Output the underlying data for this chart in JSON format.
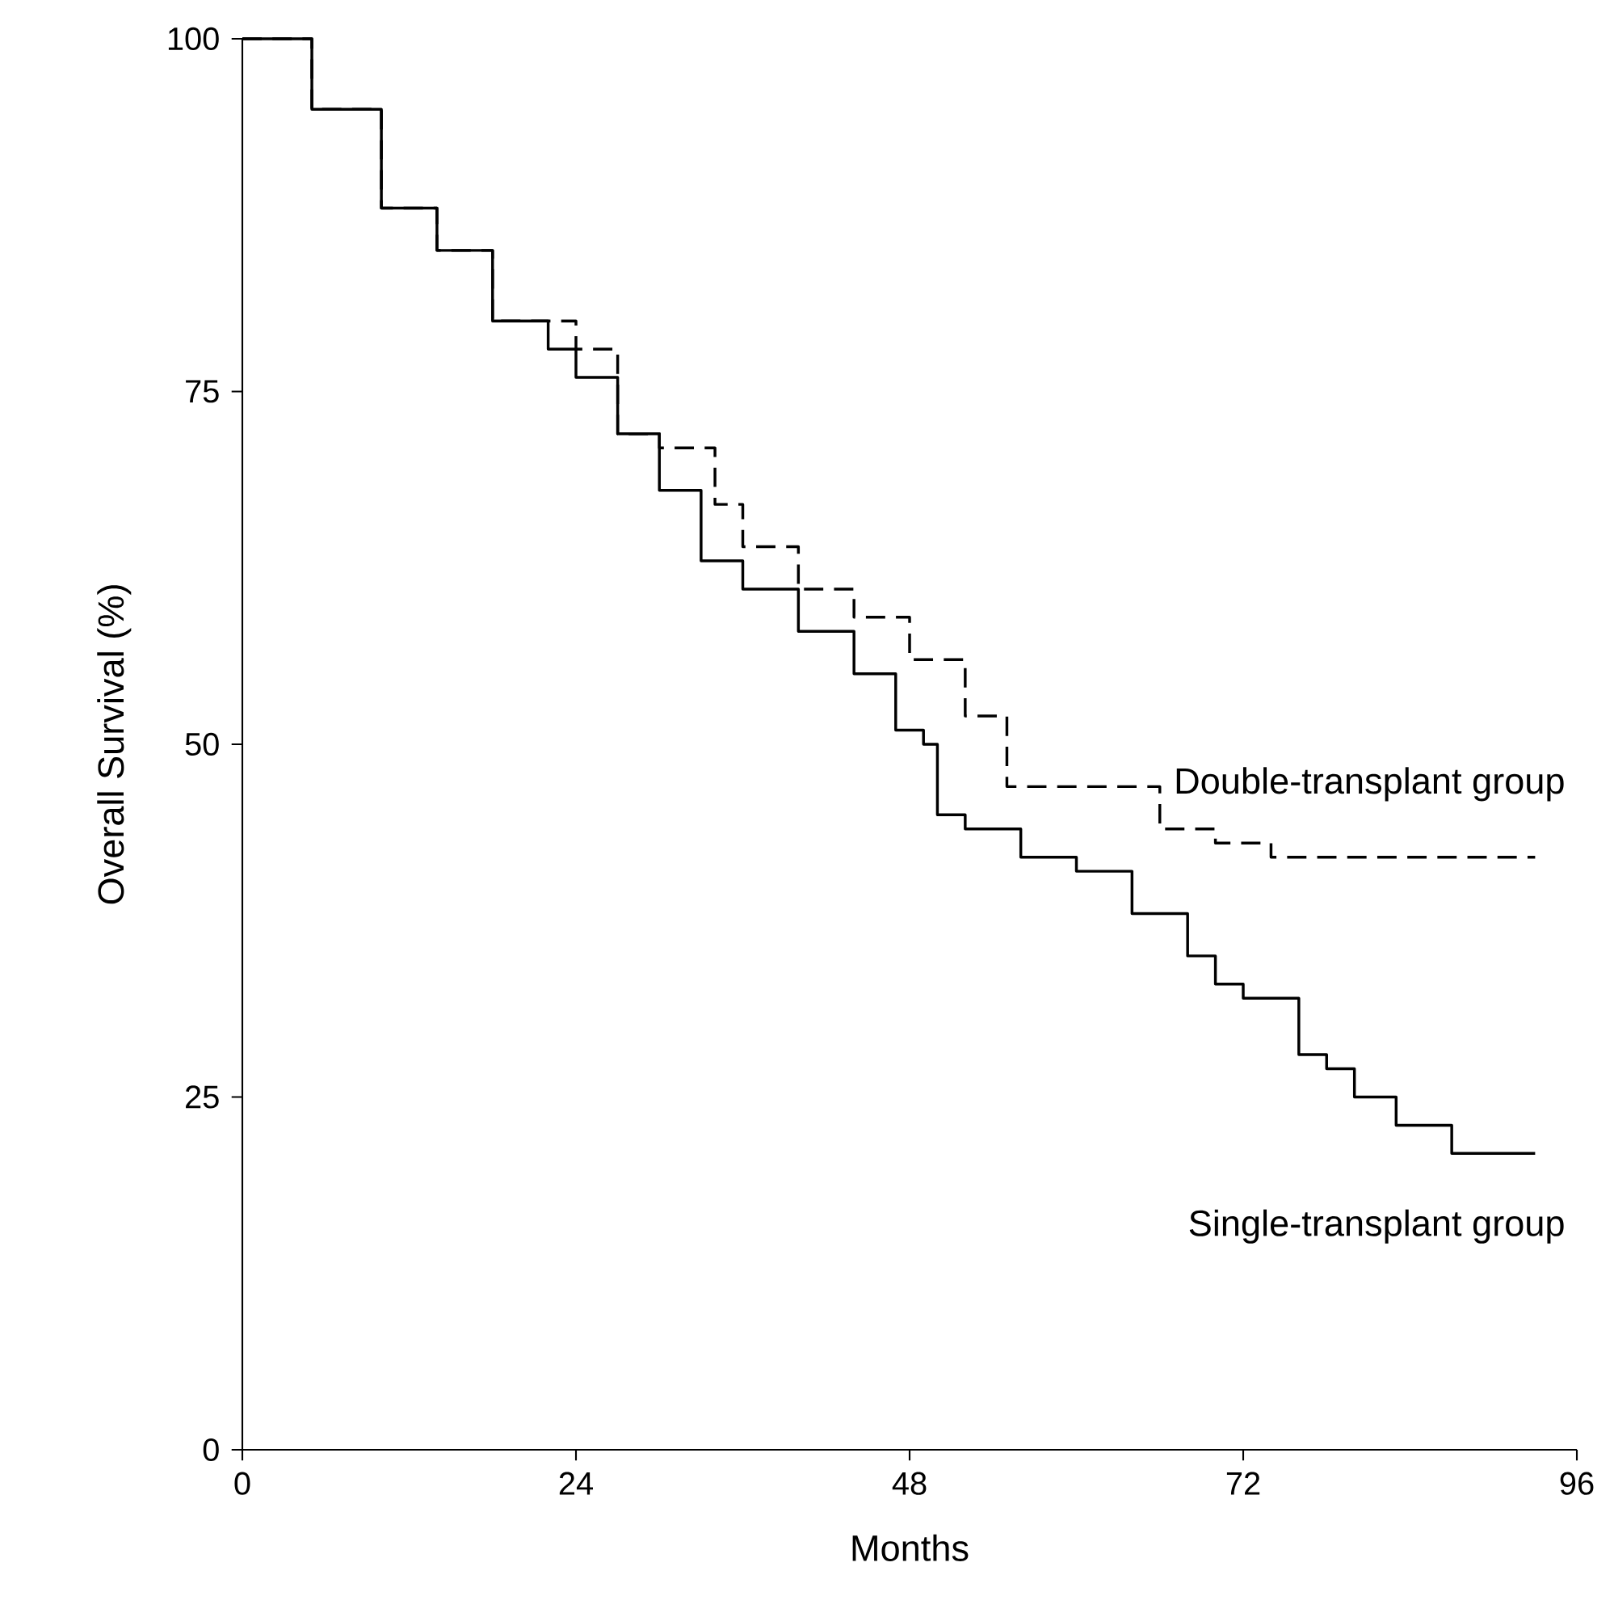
{
  "chart_data": {
    "type": "step",
    "xlabel": "Months",
    "ylabel": "Overall Survival (%)",
    "xlim": [
      0,
      96
    ],
    "ylim": [
      0,
      100
    ],
    "xticks": [
      0,
      24,
      48,
      72,
      96
    ],
    "yticks": [
      0,
      25,
      50,
      75,
      100
    ],
    "grid": false,
    "legend": false,
    "marker": "none",
    "series": [
      {
        "name": "Double-transplant group",
        "color": "#000000",
        "line_style": "dashed",
        "x": [
          0,
          5,
          10,
          14,
          18,
          24,
          27,
          30,
          34,
          36,
          40,
          44,
          48,
          52,
          55,
          60,
          63,
          66,
          70,
          74,
          93
        ],
        "values": [
          100,
          95,
          88,
          85,
          80,
          78,
          72,
          71,
          67,
          64,
          61,
          59,
          56,
          52,
          47,
          47,
          47,
          44,
          43,
          42,
          42
        ]
      },
      {
        "name": "Single-transplant group",
        "color": "#000000",
        "line_style": "solid",
        "x": [
          0,
          5,
          10,
          14,
          18,
          22,
          24,
          27,
          30,
          33,
          36,
          40,
          44,
          47,
          49,
          50,
          52,
          56,
          60,
          64,
          68,
          70,
          72,
          74,
          76,
          78,
          80,
          83,
          87,
          93
        ],
        "values": [
          100,
          95,
          88,
          85,
          80,
          78,
          76,
          72,
          68,
          63,
          61,
          58,
          55,
          51,
          50,
          45,
          44,
          42,
          41,
          38,
          35,
          33,
          32,
          32,
          28,
          27,
          25,
          23,
          21,
          21
        ]
      }
    ]
  }
}
